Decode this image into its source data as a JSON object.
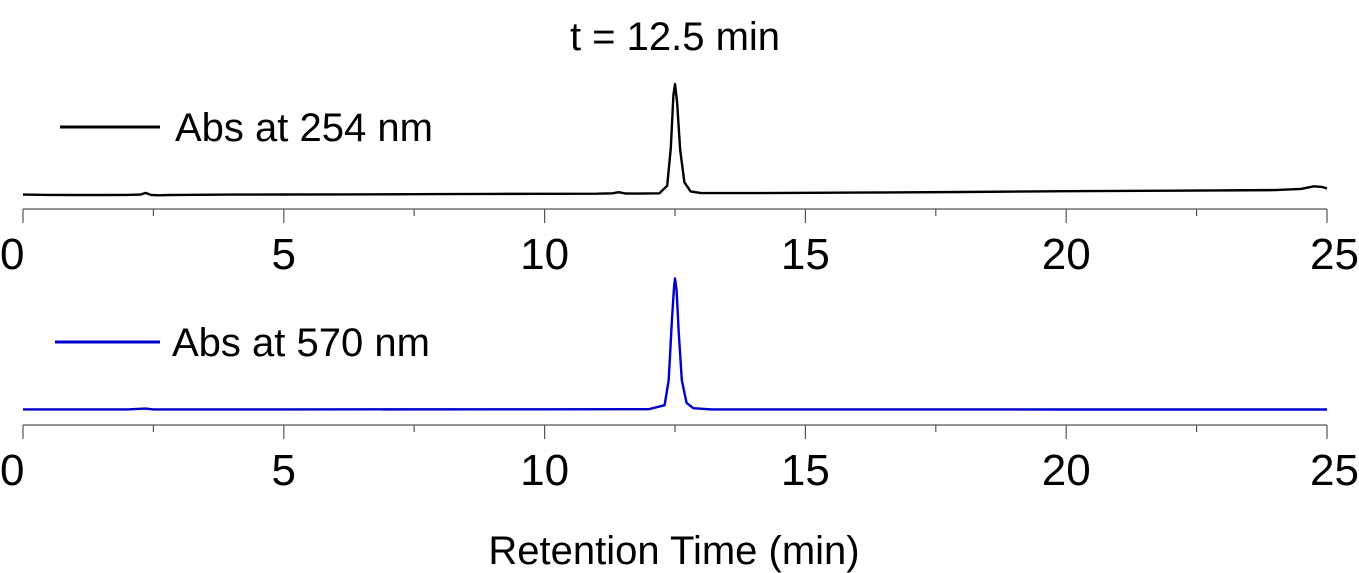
{
  "chart_data": {
    "type": "line",
    "annotation": "t = 12.5 min",
    "xlabel": "Retention Time (min)",
    "xlim": [
      0,
      25
    ],
    "x_ticks": [
      0,
      5,
      10,
      15,
      20,
      25
    ],
    "x_tick_labels": [
      "0",
      "5",
      "10",
      "15",
      "20",
      "25"
    ],
    "grid": false,
    "legend_placement": "top-left",
    "series": [
      {
        "name": "Abs at 254 nm",
        "color": "#000000",
        "x": [
          0,
          0.5,
          1.0,
          1.5,
          2.0,
          2.25,
          2.35,
          2.45,
          2.6,
          2.8,
          3.0,
          4.0,
          5.0,
          6.0,
          7.0,
          8.0,
          9.0,
          10.0,
          11.0,
          11.3,
          11.42,
          11.55,
          11.8,
          12.2,
          12.35,
          12.42,
          12.47,
          12.5,
          12.54,
          12.6,
          12.68,
          12.8,
          13.0,
          14.0,
          16.0,
          18.0,
          20.0,
          22.0,
          24.0,
          24.5,
          24.75,
          24.9,
          25.0
        ],
        "values": [
          0.12,
          0.1,
          0.09,
          0.09,
          0.1,
          0.12,
          0.27,
          0.1,
          0.06,
          0.09,
          0.1,
          0.12,
          0.13,
          0.14,
          0.15,
          0.17,
          0.18,
          0.19,
          0.2,
          0.24,
          0.33,
          0.22,
          0.21,
          0.24,
          0.9,
          4.2,
          8.8,
          9.8,
          8.2,
          4.0,
          1.2,
          0.4,
          0.25,
          0.25,
          0.3,
          0.35,
          0.42,
          0.46,
          0.52,
          0.62,
          0.85,
          0.8,
          0.66
        ],
        "ylim": [
          0,
          10.5
        ]
      },
      {
        "name": "Abs at 570 nm",
        "color": "#0000cc",
        "x": [
          0,
          2.0,
          2.35,
          2.5,
          5.0,
          10.0,
          12.0,
          12.3,
          12.38,
          12.44,
          12.48,
          12.5,
          12.53,
          12.57,
          12.63,
          12.72,
          12.85,
          13.2,
          15.0,
          20.0,
          25.0
        ],
        "values": [
          0.05,
          0.05,
          0.12,
          0.05,
          0.05,
          0.06,
          0.07,
          0.4,
          2.5,
          7.5,
          10.2,
          11.0,
          10.0,
          6.5,
          2.5,
          0.6,
          0.15,
          0.05,
          0.05,
          0.04,
          0.04
        ],
        "ylim": [
          0,
          11.7
        ]
      }
    ]
  }
}
